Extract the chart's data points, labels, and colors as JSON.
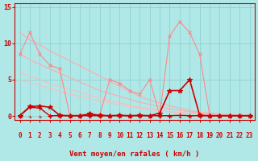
{
  "xlabel": "Vent moyen/en rafales ( km/h )",
  "background_color": "#b0e8e8",
  "grid_color": "#88cccc",
  "xlim": [
    -0.5,
    23.5
  ],
  "ylim": [
    -0.5,
    15.5
  ],
  "yticks": [
    0,
    5,
    10,
    15
  ],
  "xticks": [
    0,
    1,
    2,
    3,
    4,
    5,
    6,
    7,
    8,
    9,
    10,
    11,
    12,
    13,
    14,
    15,
    16,
    17,
    18,
    19,
    20,
    21,
    22,
    23
  ],
  "series": [
    {
      "x": [
        0,
        1,
        2,
        3,
        4,
        5,
        6,
        7,
        8,
        9,
        10,
        11,
        12,
        13,
        14,
        15,
        16,
        17,
        18,
        19,
        20,
        21,
        22,
        23
      ],
      "y": [
        11.5,
        10.5,
        9.8,
        9.0,
        8.3,
        7.6,
        6.9,
        6.2,
        5.5,
        4.8,
        4.1,
        3.4,
        2.7,
        2.2,
        1.8,
        1.4,
        1.1,
        0.8,
        0.5,
        0.4,
        0.3,
        0.2,
        0.1,
        0.05
      ],
      "color": "#ffaaaa",
      "lw": 0.8,
      "marker": null,
      "ms": 0
    },
    {
      "x": [
        0,
        1,
        2,
        3,
        4,
        5,
        6,
        7,
        8,
        9,
        10,
        11,
        12,
        13,
        14,
        15,
        16,
        17,
        18,
        19,
        20,
        21,
        22,
        23
      ],
      "y": [
        8.5,
        7.8,
        7.1,
        6.5,
        5.9,
        5.3,
        4.7,
        4.1,
        3.5,
        3.1,
        2.7,
        2.3,
        1.9,
        1.6,
        1.3,
        1.0,
        0.8,
        0.6,
        0.4,
        0.3,
        0.2,
        0.15,
        0.1,
        0.05
      ],
      "color": "#ffaaaa",
      "lw": 0.8,
      "marker": null,
      "ms": 0
    },
    {
      "x": [
        0,
        1,
        2,
        3,
        4,
        5,
        6,
        7,
        8,
        9,
        10,
        11,
        12,
        13,
        14,
        15,
        16,
        17,
        18,
        19,
        20,
        21,
        22,
        23
      ],
      "y": [
        6.0,
        5.5,
        5.0,
        4.5,
        4.1,
        3.7,
        3.3,
        2.9,
        2.5,
        2.1,
        1.8,
        1.5,
        1.2,
        1.0,
        0.8,
        0.6,
        0.5,
        0.4,
        0.3,
        0.2,
        0.15,
        0.1,
        0.07,
        0.05
      ],
      "color": "#ffbbbb",
      "lw": 0.8,
      "marker": null,
      "ms": 0
    },
    {
      "x": [
        0,
        1,
        2,
        3,
        4,
        5,
        6,
        7,
        8,
        9,
        10,
        11,
        12,
        13,
        14,
        15,
        16,
        17,
        18,
        19,
        20,
        21,
        22,
        23
      ],
      "y": [
        5.0,
        4.6,
        4.2,
        3.8,
        3.4,
        3.0,
        2.7,
        2.4,
        2.1,
        1.8,
        1.5,
        1.3,
        1.1,
        0.9,
        0.7,
        0.6,
        0.45,
        0.35,
        0.25,
        0.18,
        0.12,
        0.08,
        0.06,
        0.04
      ],
      "color": "#ffbbbb",
      "lw": 0.8,
      "marker": null,
      "ms": 0
    },
    {
      "x": [
        0,
        1,
        2,
        3,
        4,
        5,
        6,
        7,
        8,
        9,
        10,
        11,
        12,
        13,
        14,
        15,
        16,
        17,
        18,
        19,
        20,
        21,
        22,
        23
      ],
      "y": [
        8.5,
        11.5,
        8.5,
        7.0,
        6.5,
        0.1,
        0.1,
        0.1,
        0.1,
        5.0,
        4.5,
        3.5,
        3.0,
        5.0,
        0.1,
        11.0,
        13.0,
        11.5,
        8.5,
        0.1,
        0.1,
        0.1,
        0.1,
        0.1
      ],
      "color": "#ff8888",
      "lw": 0.8,
      "marker": "x",
      "ms": 3
    },
    {
      "x": [
        0,
        1,
        2,
        3,
        4,
        5,
        6,
        7,
        8,
        9,
        10,
        11,
        12,
        13,
        14,
        15,
        16,
        17,
        18,
        19,
        20,
        21,
        22,
        23
      ],
      "y": [
        0.05,
        1.3,
        1.4,
        1.2,
        0.1,
        0.05,
        0.05,
        0.3,
        0.1,
        0.05,
        0.1,
        0.05,
        0.1,
        0.05,
        0.4,
        3.5,
        3.5,
        5.0,
        0.1,
        0.05,
        0.05,
        0.05,
        0.05,
        0.05
      ],
      "color": "#cc0000",
      "lw": 1.2,
      "marker": "*",
      "ms": 4
    },
    {
      "x": [
        0,
        1,
        2,
        3,
        4,
        5,
        6,
        7,
        8,
        9,
        10,
        11,
        12,
        13,
        14,
        15,
        16,
        17,
        18,
        19,
        20,
        21,
        22,
        23
      ],
      "y": [
        0.05,
        1.2,
        1.1,
        0.05,
        0.05,
        0.05,
        0.05,
        0.05,
        0.05,
        0.05,
        0.05,
        0.05,
        0.05,
        0.05,
        0.05,
        0.05,
        0.1,
        0.05,
        0.05,
        0.05,
        0.05,
        0.05,
        0.05,
        0.05
      ],
      "color": "#cc0000",
      "lw": 1.0,
      "marker": "+",
      "ms": 4
    }
  ],
  "arrow_color": "#dd0000",
  "xlabel_color": "#cc0000",
  "xlabel_fontsize": 6.5,
  "tick_fontsize": 5.5,
  "ytick_fontsize": 6,
  "tick_color": "#cc0000",
  "spine_color": "#cc0000"
}
